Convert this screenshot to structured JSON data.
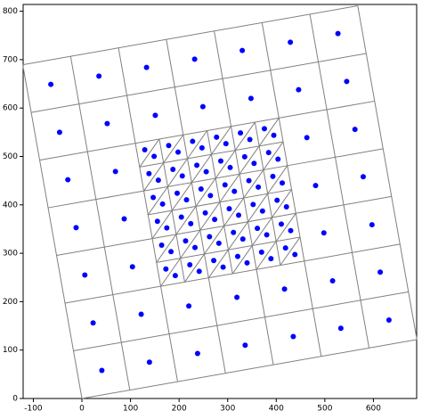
{
  "chart_data": {
    "type": "scatter",
    "xlim": [
      -121,
      689
    ],
    "ylim": [
      0,
      814
    ],
    "xticks": [
      -100,
      0,
      100,
      200,
      300,
      400,
      500,
      600
    ],
    "yticks": [
      0,
      100,
      200,
      300,
      400,
      500,
      600,
      700,
      800
    ],
    "point_color": "#0000ff",
    "line_color": "#808080",
    "lines": [
      [
        0,
        0,
        689.5,
        121.8
      ],
      [
        -17.4,
        98.5,
        672.1,
        220.3
      ],
      [
        -34.8,
        197,
        654.7,
        318.8
      ],
      [
        -52.2,
        295.5,
        144.8,
        330.3
      ],
      [
        440.3,
        382.5,
        637.3,
        417.3
      ],
      [
        -69.6,
        394,
        127.4,
        428.8
      ],
      [
        422.9,
        481,
        619.9,
        515.8
      ],
      [
        -87,
        492.5,
        602.5,
        614.3
      ],
      [
        -104.4,
        591,
        585.1,
        712.8
      ],
      [
        -121.8,
        689.5,
        567.7,
        811.3
      ],
      [
        0,
        0,
        -121.8,
        689.5
      ],
      [
        98.5,
        17.4,
        -23.3,
        706.9
      ],
      [
        197,
        34.8,
        75.2,
        724.3
      ],
      [
        295.5,
        52.2,
        260.7,
        249.2
      ],
      [
        208.5,
        544.7,
        173.7,
        741.7
      ],
      [
        394,
        69.6,
        359.2,
        266.6
      ],
      [
        307,
        562.1,
        272.2,
        759.1
      ],
      [
        492.5,
        87,
        370.7,
        776.5
      ],
      [
        591,
        104.4,
        469.2,
        793.9
      ],
      [
        689.5,
        121.8,
        567.7,
        811.3
      ],
      [
        153.5,
        281.05,
        449,
        333.25
      ],
      [
        144.8,
        330.3,
        440.3,
        382.5
      ],
      [
        136.1,
        379.55,
        431.6,
        431.75
      ],
      [
        127.4,
        428.8,
        422.9,
        481
      ],
      [
        118.7,
        478.05,
        414.2,
        530.25
      ],
      [
        211.45,
        240.5,
        159.25,
        536
      ],
      [
        260.7,
        249.2,
        208.5,
        544.7
      ],
      [
        309.95,
        257.9,
        257.75,
        553.4
      ],
      [
        359.2,
        266.6,
        307,
        562.1
      ],
      [
        408.45,
        275.3,
        356.25,
        570.8
      ],
      [
        162.2,
        231.8,
        405.5,
        579.5
      ],
      [
        211.45,
        240.5,
        414.2,
        530.25
      ],
      [
        260.7,
        249.2,
        422.9,
        481
      ],
      [
        309.95,
        257.9,
        431.6,
        431.75
      ],
      [
        359.2,
        266.6,
        440.3,
        382.5
      ],
      [
        408.45,
        275.3,
        449,
        333.25
      ],
      [
        153.5,
        281.05,
        356.25,
        570.8
      ],
      [
        144.8,
        330.3,
        307,
        562.1
      ],
      [
        136.1,
        379.55,
        257.75,
        553.4
      ],
      [
        127.4,
        428.8,
        208.5,
        544.7
      ],
      [
        118.7,
        478.05,
        159.25,
        536
      ]
    ],
    "points": [
      [
        41,
        58
      ],
      [
        139,
        75
      ],
      [
        238,
        93
      ],
      [
        336,
        110
      ],
      [
        435,
        128
      ],
      [
        533,
        145
      ],
      [
        632,
        162
      ],
      [
        23,
        156
      ],
      [
        122,
        174
      ],
      [
        220,
        191
      ],
      [
        319,
        209
      ],
      [
        417,
        226
      ],
      [
        516,
        243
      ],
      [
        614,
        261
      ],
      [
        6,
        255
      ],
      [
        104,
        272
      ],
      [
        498,
        342
      ],
      [
        597,
        359
      ],
      [
        -12,
        353
      ],
      [
        87,
        371
      ],
      [
        481,
        440
      ],
      [
        579,
        458
      ],
      [
        -29,
        452
      ],
      [
        69,
        469
      ],
      [
        463,
        539
      ],
      [
        562,
        556
      ],
      [
        -46,
        550
      ],
      [
        52,
        568
      ],
      [
        151,
        585
      ],
      [
        249,
        603
      ],
      [
        348,
        620
      ],
      [
        446,
        638
      ],
      [
        545,
        655
      ],
      [
        -64,
        649
      ],
      [
        35,
        666
      ],
      [
        133,
        684
      ],
      [
        232,
        701
      ],
      [
        330,
        719
      ],
      [
        429,
        736
      ],
      [
        527,
        754
      ],
      [
        192.1,
        254.0
      ],
      [
        172.8,
        267.5
      ],
      [
        241.4,
        262.7
      ],
      [
        222.1,
        276.2
      ],
      [
        290.6,
        271.4
      ],
      [
        271.3,
        284.9
      ],
      [
        339.9,
        280.1
      ],
      [
        320.6,
        293.6
      ],
      [
        389.1,
        288.8
      ],
      [
        369.8,
        302.3
      ],
      [
        438.4,
        297.5
      ],
      [
        419.1,
        311.0
      ],
      [
        183.4,
        303.3
      ],
      [
        164.1,
        316.8
      ],
      [
        232.7,
        312.0
      ],
      [
        213.4,
        325.5
      ],
      [
        281.9,
        320.7
      ],
      [
        262.6,
        334.2
      ],
      [
        331.2,
        329.4
      ],
      [
        311.9,
        342.9
      ],
      [
        380.4,
        338.1
      ],
      [
        361.1,
        351.6
      ],
      [
        429.7,
        346.8
      ],
      [
        410.4,
        360.3
      ],
      [
        174.7,
        352.5
      ],
      [
        155.4,
        366.0
      ],
      [
        224.0,
        361.2
      ],
      [
        204.7,
        374.7
      ],
      [
        273.2,
        369.9
      ],
      [
        253.9,
        383.4
      ],
      [
        322.5,
        378.6
      ],
      [
        303.2,
        392.1
      ],
      [
        371.7,
        387.3
      ],
      [
        352.4,
        400.8
      ],
      [
        421.0,
        396.0
      ],
      [
        401.7,
        409.5
      ],
      [
        166.0,
        401.8
      ],
      [
        146.7,
        415.3
      ],
      [
        215.3,
        410.5
      ],
      [
        196.0,
        424.0
      ],
      [
        264.5,
        419.2
      ],
      [
        245.2,
        432.7
      ],
      [
        313.8,
        427.9
      ],
      [
        294.5,
        441.4
      ],
      [
        363.0,
        436.6
      ],
      [
        343.7,
        450.1
      ],
      [
        412.3,
        445.3
      ],
      [
        393.0,
        458.8
      ],
      [
        157.3,
        451.0
      ],
      [
        138.0,
        464.5
      ],
      [
        206.6,
        459.7
      ],
      [
        187.3,
        473.2
      ],
      [
        255.8,
        468.4
      ],
      [
        236.5,
        481.9
      ],
      [
        305.1,
        477.1
      ],
      [
        285.8,
        490.6
      ],
      [
        354.3,
        485.8
      ],
      [
        335.0,
        499.3
      ],
      [
        403.6,
        494.5
      ],
      [
        384.3,
        508.0
      ],
      [
        148.6,
        500.3
      ],
      [
        129.3,
        513.8
      ],
      [
        197.9,
        509.0
      ],
      [
        178.6,
        522.5
      ],
      [
        247.1,
        517.7
      ],
      [
        227.8,
        531.2
      ],
      [
        296.4,
        526.4
      ],
      [
        277.1,
        539.9
      ],
      [
        345.6,
        535.1
      ],
      [
        326.3,
        548.6
      ],
      [
        394.9,
        543.8
      ],
      [
        375.6,
        557.3
      ]
    ]
  }
}
